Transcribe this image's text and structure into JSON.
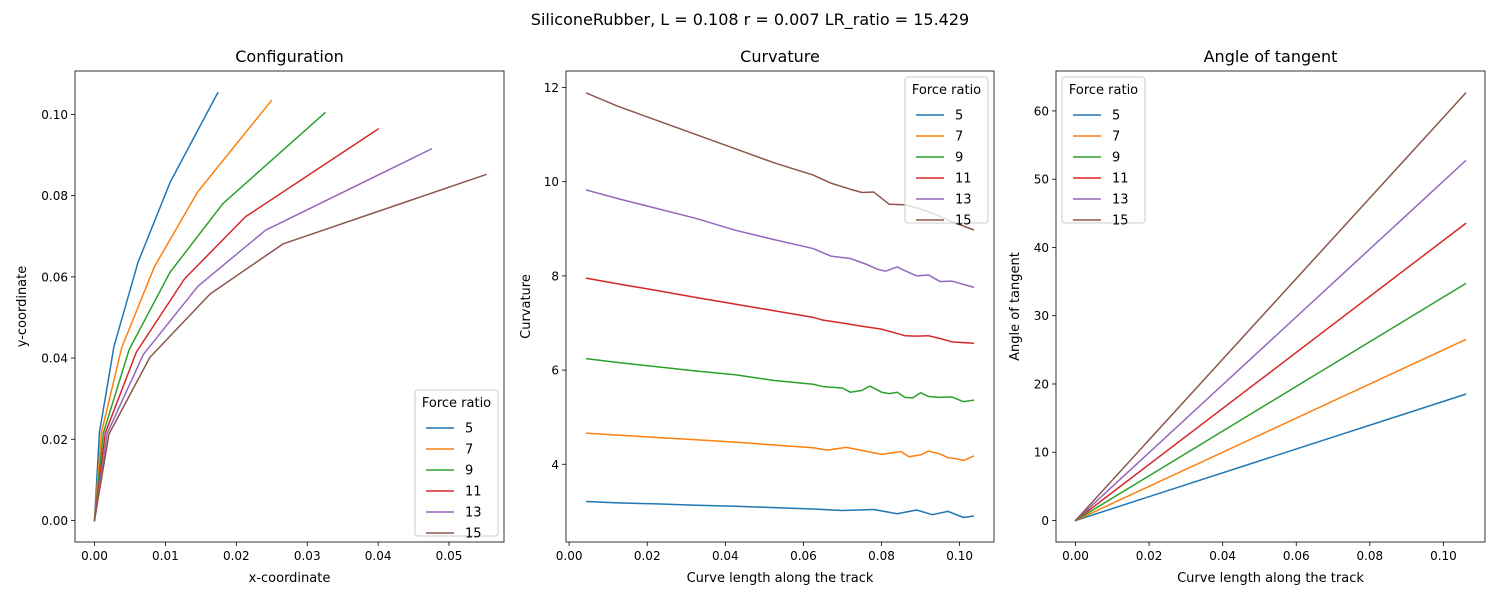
{
  "suptitle": "SiliconeRubber, L = 0.108 r = 0.007 LR_ratio = 15.429",
  "colors": [
    "#1f77b4",
    "#ff7f0e",
    "#2ca02c",
    "#d62728",
    "#9467bd",
    "#8c564b"
  ],
  "chart_data": [
    {
      "type": "line",
      "title": "Configuration",
      "xlabel": "x-coordinate",
      "ylabel": "y-coordinate",
      "xlim": [
        -0.00275,
        0.05775
      ],
      "ylim": [
        -0.0053,
        0.1107
      ],
      "xticks": [
        0.0,
        0.01,
        0.02,
        0.03,
        0.04,
        0.05
      ],
      "xtick_labels": [
        "0.00",
        "0.01",
        "0.02",
        "0.03",
        "0.04",
        "0.05"
      ],
      "yticks": [
        0.0,
        0.02,
        0.04,
        0.06,
        0.08,
        0.1
      ],
      "ytick_labels": [
        "0.00",
        "0.02",
        "0.04",
        "0.06",
        "0.08",
        "0.10"
      ],
      "grid": false,
      "legend": {
        "title": "Force ratio",
        "location": "lower-right"
      },
      "series": [
        {
          "name": "5",
          "x": [
            0.0,
            0.00069,
            0.00275,
            0.00612,
            0.01067,
            0.01737
          ],
          "y": [
            0.0,
            0.0216,
            0.0429,
            0.0635,
            0.0833,
            0.1053
          ]
        },
        {
          "name": "7",
          "x": [
            0.0,
            0.00097,
            0.00384,
            0.00845,
            0.01454,
            0.02494
          ],
          "y": [
            0.0,
            0.0216,
            0.0426,
            0.0625,
            0.0809,
            0.1034
          ]
        },
        {
          "name": "9",
          "x": [
            0.0,
            0.00124,
            0.00489,
            0.01064,
            0.01808,
            0.0325
          ],
          "y": [
            0.0,
            0.0215,
            0.0421,
            0.0611,
            0.078,
            0.1004
          ]
        },
        {
          "name": "11",
          "x": [
            0.0,
            0.00151,
            0.00591,
            0.01269,
            0.02129,
            0.04
          ],
          "y": [
            0.0,
            0.0215,
            0.0415,
            0.0595,
            0.0748,
            0.0964
          ]
        },
        {
          "name": "13",
          "x": [
            0.0,
            0.00178,
            0.00689,
            0.01459,
            0.02413,
            0.0475
          ],
          "y": [
            0.0,
            0.0214,
            0.0409,
            0.0577,
            0.0715,
            0.0915
          ]
        },
        {
          "name": "15",
          "x": [
            0.0,
            0.00204,
            0.00782,
            0.01632,
            0.02657,
            0.0552
          ],
          "y": [
            0.0,
            0.0213,
            0.0402,
            0.0558,
            0.0681,
            0.0852
          ]
        }
      ]
    },
    {
      "type": "line",
      "title": "Curvature",
      "xlabel": "Curve length along the track",
      "ylabel": "Curvature",
      "xlim": [
        -0.0008,
        0.1088
      ],
      "ylim": [
        2.35,
        12.35
      ],
      "xticks": [
        0.0,
        0.02,
        0.04,
        0.06,
        0.08,
        0.1
      ],
      "xtick_labels": [
        "0.00",
        "0.02",
        "0.04",
        "0.06",
        "0.08",
        "0.10"
      ],
      "yticks": [
        4,
        6,
        8,
        10,
        12
      ],
      "ytick_labels": [
        "4",
        "6",
        "8",
        "10",
        "12"
      ],
      "grid": false,
      "legend": {
        "title": "Force ratio",
        "location": "top-right"
      },
      "series": [
        {
          "name": "5",
          "x": [
            0.0045,
            0.0125,
            0.0225,
            0.0325,
            0.0425,
            0.0525,
            0.0625,
            0.07,
            0.078,
            0.084,
            0.089,
            0.093,
            0.097,
            0.101,
            0.1035
          ],
          "y": [
            3.21,
            3.18,
            3.16,
            3.13,
            3.11,
            3.08,
            3.05,
            3.02,
            3.04,
            2.95,
            3.03,
            2.93,
            3.0,
            2.87,
            2.9
          ]
        },
        {
          "name": "7",
          "x": [
            0.0045,
            0.0125,
            0.0225,
            0.0325,
            0.0425,
            0.0525,
            0.0625,
            0.066,
            0.071,
            0.077,
            0.08,
            0.085,
            0.087,
            0.09,
            0.092,
            0.095,
            0.097,
            0.099,
            0.101,
            0.1035
          ],
          "y": [
            4.66,
            4.62,
            4.57,
            4.52,
            4.47,
            4.41,
            4.35,
            4.3,
            4.36,
            4.26,
            4.21,
            4.27,
            4.16,
            4.2,
            4.28,
            4.22,
            4.14,
            4.12,
            4.08,
            4.17
          ]
        },
        {
          "name": "9",
          "x": [
            0.0045,
            0.0125,
            0.0225,
            0.0325,
            0.0425,
            0.0525,
            0.0625,
            0.065,
            0.07,
            0.072,
            0.075,
            0.077,
            0.08,
            0.082,
            0.084,
            0.086,
            0.088,
            0.09,
            0.092,
            0.095,
            0.098,
            0.101,
            0.1035
          ],
          "y": [
            6.24,
            6.16,
            6.07,
            5.98,
            5.9,
            5.78,
            5.7,
            5.65,
            5.62,
            5.53,
            5.57,
            5.66,
            5.53,
            5.5,
            5.53,
            5.42,
            5.41,
            5.52,
            5.44,
            5.42,
            5.43,
            5.33,
            5.36
          ]
        },
        {
          "name": "11",
          "x": [
            0.0045,
            0.0125,
            0.0225,
            0.0325,
            0.0425,
            0.0525,
            0.0625,
            0.065,
            0.07,
            0.075,
            0.08,
            0.083,
            0.086,
            0.089,
            0.092,
            0.095,
            0.098,
            0.1035
          ],
          "y": [
            7.95,
            7.83,
            7.69,
            7.54,
            7.4,
            7.26,
            7.12,
            7.06,
            7.0,
            6.93,
            6.87,
            6.8,
            6.73,
            6.72,
            6.73,
            6.67,
            6.6,
            6.57
          ]
        },
        {
          "name": "13",
          "x": [
            0.0045,
            0.0125,
            0.0225,
            0.0325,
            0.0425,
            0.0525,
            0.0625,
            0.067,
            0.072,
            0.076,
            0.079,
            0.081,
            0.084,
            0.086,
            0.089,
            0.092,
            0.095,
            0.098,
            0.1035
          ],
          "y": [
            9.82,
            9.64,
            9.43,
            9.22,
            8.97,
            8.77,
            8.58,
            8.42,
            8.37,
            8.25,
            8.14,
            8.1,
            8.19,
            8.11,
            8.0,
            8.02,
            7.88,
            7.89,
            7.76
          ]
        },
        {
          "name": "15",
          "x": [
            0.0045,
            0.0125,
            0.0225,
            0.0325,
            0.0425,
            0.0525,
            0.0625,
            0.067,
            0.072,
            0.075,
            0.078,
            0.082,
            0.086,
            0.09,
            0.094,
            0.098,
            0.1035
          ],
          "y": [
            11.88,
            11.6,
            11.3,
            11.0,
            10.7,
            10.4,
            10.14,
            9.97,
            9.84,
            9.77,
            9.78,
            9.52,
            9.51,
            9.42,
            9.3,
            9.15,
            8.98
          ]
        }
      ]
    },
    {
      "type": "line",
      "title": "Angle of tangent",
      "xlabel": "Curve length along the track",
      "ylabel": "Angle of tangent",
      "xlim": [
        -0.0053,
        0.1113
      ],
      "ylim": [
        -3.15,
        65.85
      ],
      "xticks": [
        0.0,
        0.02,
        0.04,
        0.06,
        0.08,
        0.1
      ],
      "xtick_labels": [
        "0.00",
        "0.02",
        "0.04",
        "0.06",
        "0.08",
        "0.10"
      ],
      "yticks": [
        0,
        10,
        20,
        30,
        40,
        50,
        60
      ],
      "ytick_labels": [
        "0",
        "10",
        "20",
        "30",
        "40",
        "50",
        "60"
      ],
      "grid": false,
      "legend": {
        "title": "Force ratio",
        "location": "top-left"
      },
      "series": [
        {
          "name": "5",
          "x": [
            0.0,
            0.106
          ],
          "y": [
            0.0,
            18.5
          ]
        },
        {
          "name": "7",
          "x": [
            0.0,
            0.106
          ],
          "y": [
            0.0,
            26.5
          ]
        },
        {
          "name": "9",
          "x": [
            0.0,
            0.106
          ],
          "y": [
            0.0,
            34.7
          ]
        },
        {
          "name": "11",
          "x": [
            0.0,
            0.106
          ],
          "y": [
            0.0,
            43.5
          ]
        },
        {
          "name": "13",
          "x": [
            0.0,
            0.106
          ],
          "y": [
            0.0,
            52.7
          ]
        },
        {
          "name": "15",
          "x": [
            0.0,
            0.106
          ],
          "y": [
            0.0,
            62.6
          ]
        }
      ]
    }
  ]
}
